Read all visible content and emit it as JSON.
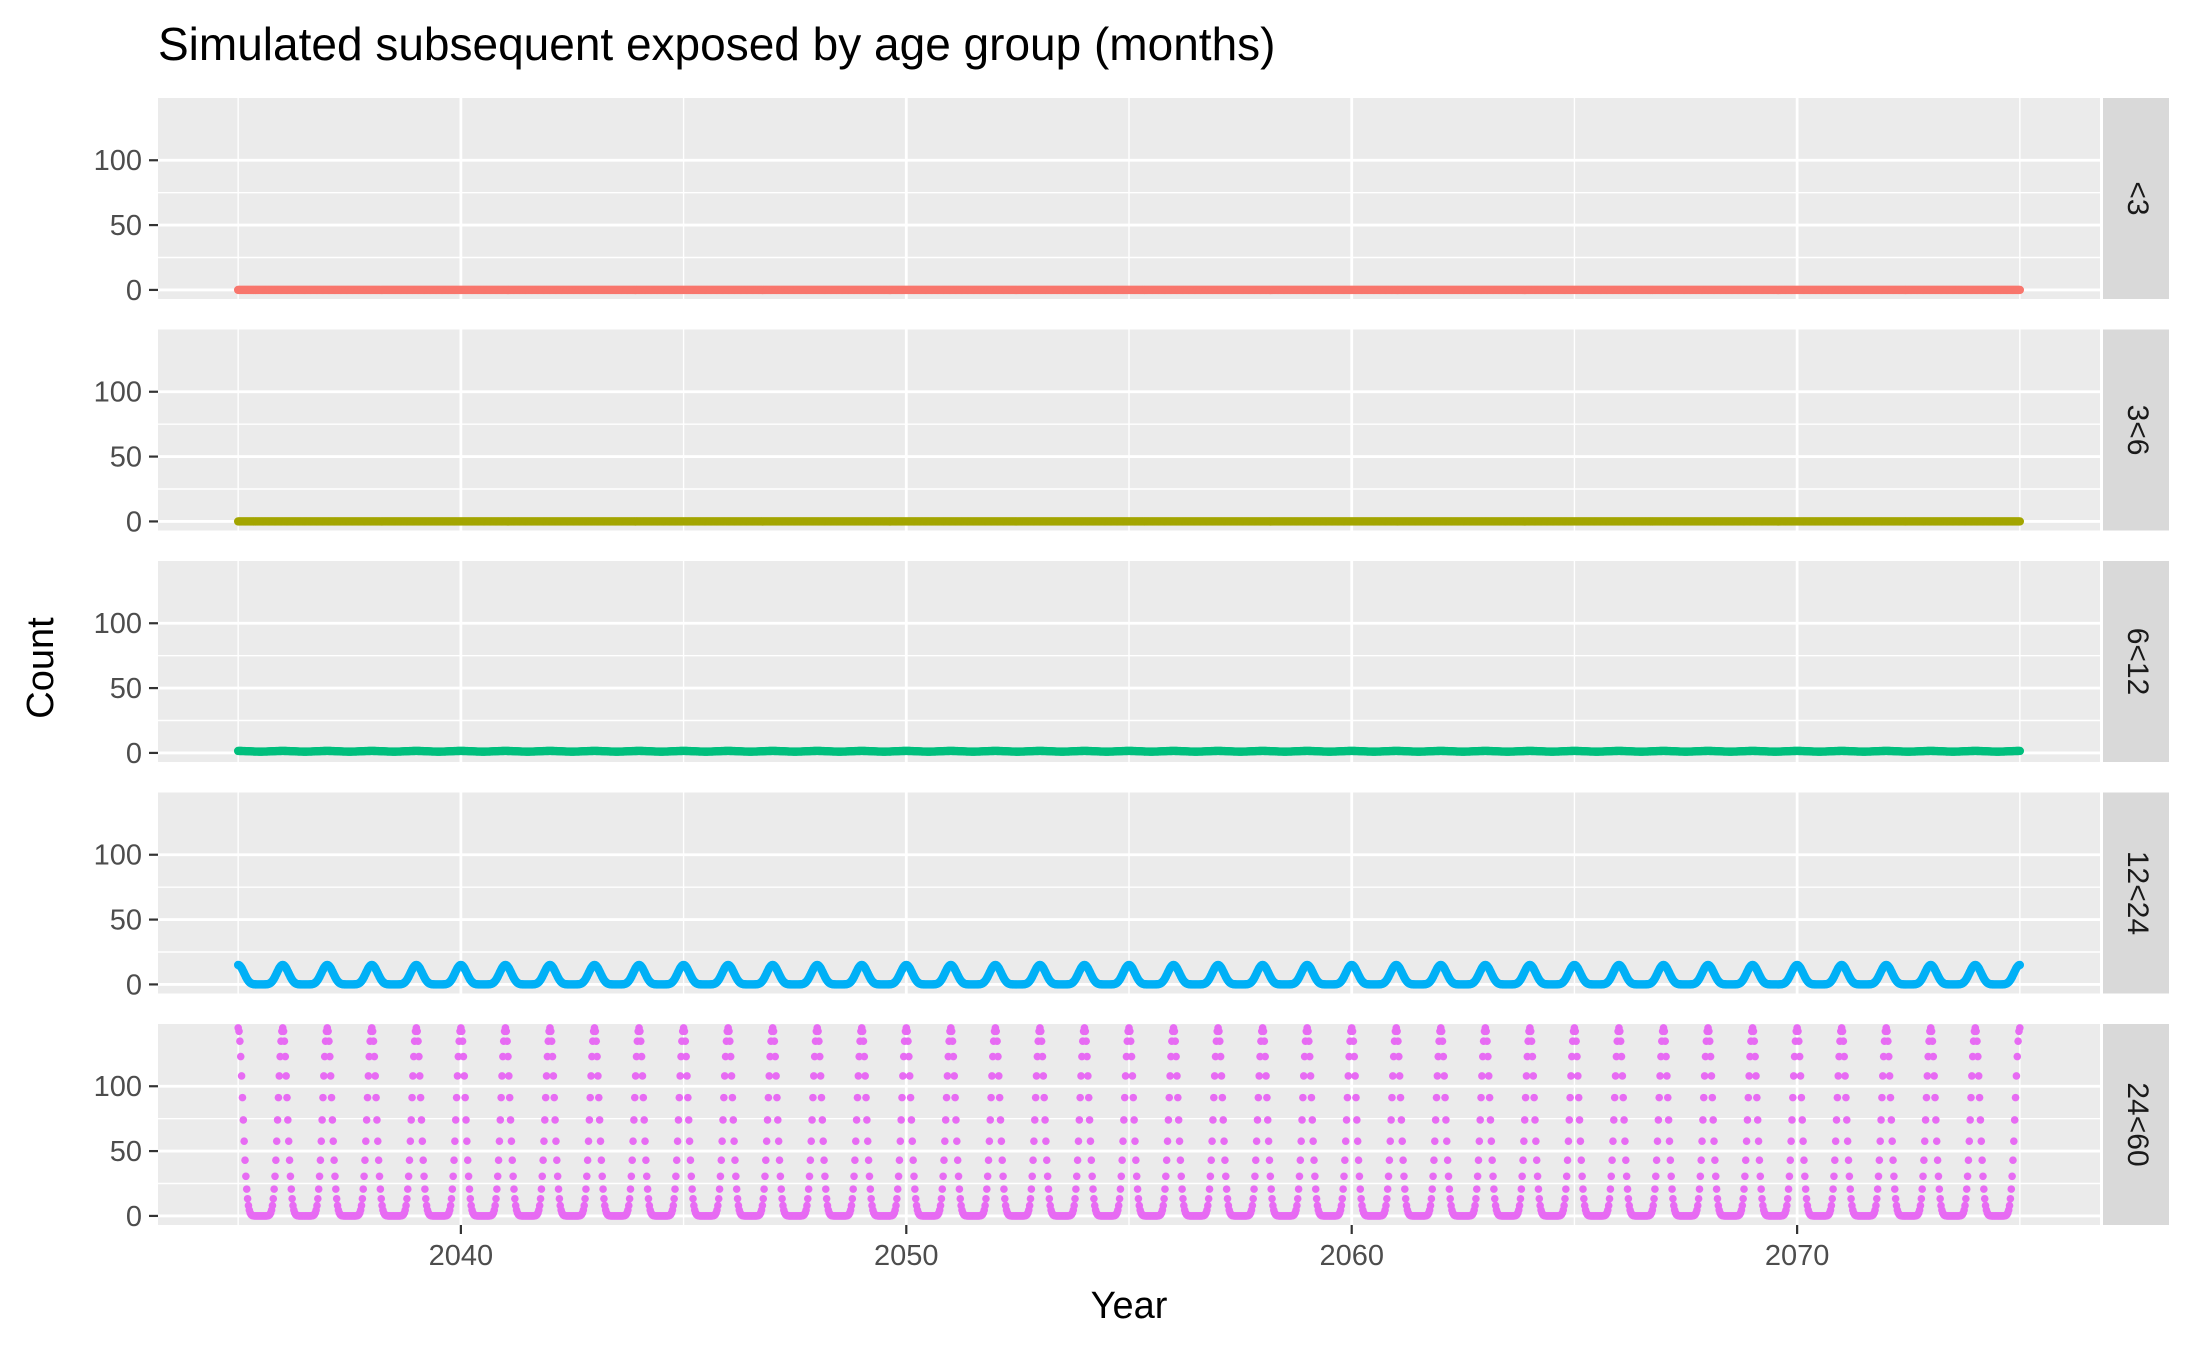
{
  "chart_data": {
    "type": "scatter",
    "title": "Simulated subsequent exposed by age group (months)",
    "xlabel": "Year",
    "ylabel": "Count",
    "xlim": [
      2033.2,
      2076.8
    ],
    "ylim": [
      -7,
      148
    ],
    "x_ticks": [
      2040,
      2050,
      2060,
      2070
    ],
    "y_ticks": [
      0,
      50,
      100
    ],
    "grid": true,
    "legend": "none",
    "x_range": [
      2035.0,
      2075.0
    ],
    "cycle_period_years": 1,
    "points_per_year": 52,
    "facets": [
      {
        "name": "<3",
        "color": "#F8766D",
        "pattern": "flat",
        "baseline": 0,
        "peak": 0
      },
      {
        "name": "3<6",
        "color": "#A3A500",
        "pattern": "flat",
        "baseline": 0,
        "peak": 0
      },
      {
        "name": "6<12",
        "color": "#00BF7D",
        "pattern": "flat",
        "baseline": 1,
        "peak": 1.5
      },
      {
        "name": "12<24",
        "color": "#00B0F6",
        "pattern": "seasonal",
        "baseline": 0,
        "peak": 15
      },
      {
        "name": "24<60",
        "color": "#E76BF3",
        "pattern": "seasonal",
        "baseline": 0,
        "peak": 145
      }
    ]
  }
}
